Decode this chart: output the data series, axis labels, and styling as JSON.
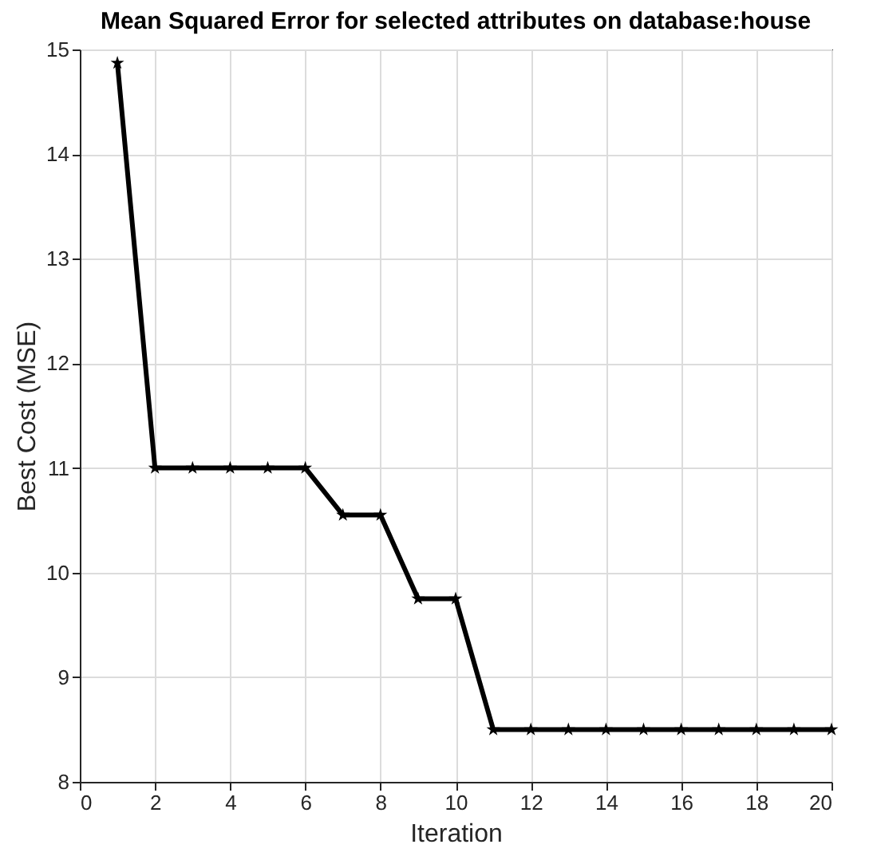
{
  "chart_data": {
    "type": "line",
    "title": "Mean Squared Error for selected attributes on database:house",
    "xlabel": "Iteration",
    "ylabel": "Best Cost (MSE)",
    "x": [
      1,
      2,
      3,
      4,
      5,
      6,
      7,
      8,
      9,
      10,
      11,
      12,
      13,
      14,
      15,
      16,
      17,
      18,
      19,
      20
    ],
    "series": [
      {
        "color": "#000000",
        "values": [
          14.87,
          11,
          11,
          11,
          11,
          11,
          10.55,
          10.55,
          9.75,
          9.75,
          8.5,
          8.5,
          8.5,
          8.5,
          8.5,
          8.5,
          8.5,
          8.5,
          8.5,
          8.5
        ]
      }
    ],
    "xlim": [
      0,
      20
    ],
    "xticks": [
      0,
      2,
      4,
      6,
      8,
      10,
      12,
      14,
      16,
      18,
      20
    ],
    "ylim": [
      8,
      15
    ],
    "yticks": [
      8,
      9,
      10,
      11,
      12,
      13,
      14,
      15
    ],
    "grid": true,
    "marker": "star",
    "line_style": "solid"
  }
}
